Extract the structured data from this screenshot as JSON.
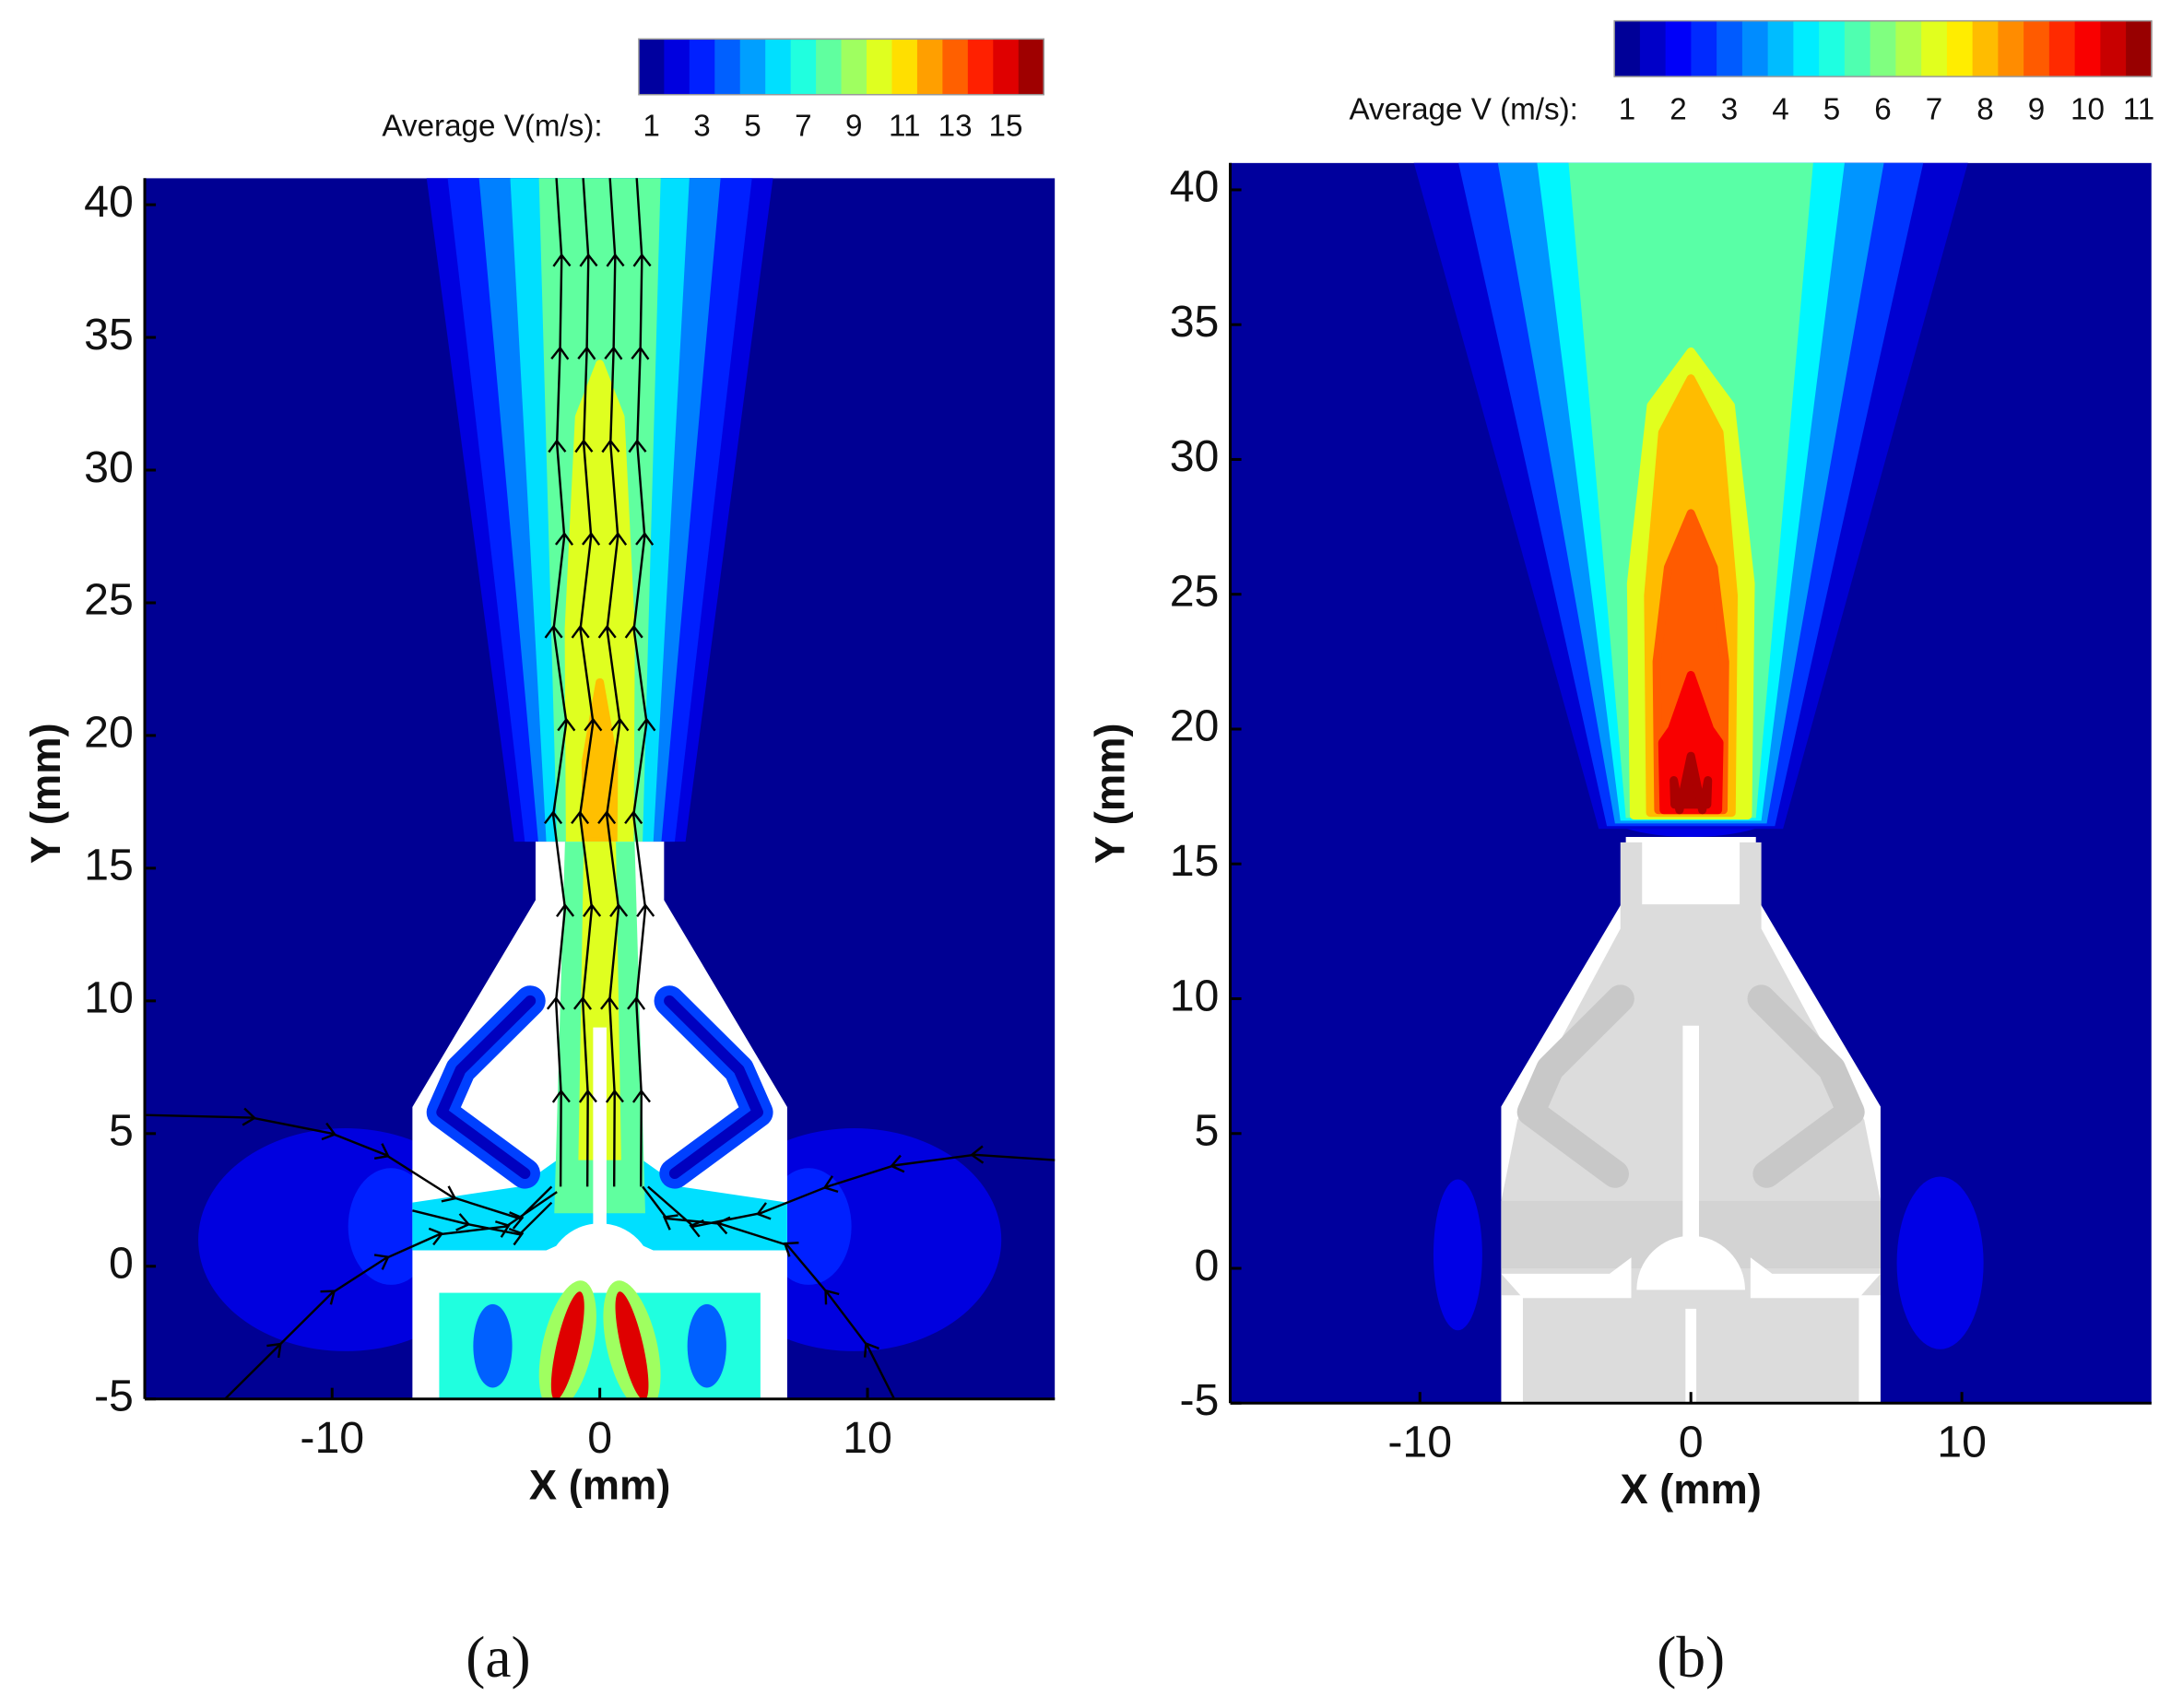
{
  "chart_data": [
    {
      "type": "contour",
      "label": "(a)",
      "xlabel": "X (mm)",
      "ylabel": "Y (mm)",
      "xlim": [
        -17,
        17
      ],
      "ylim": [
        -5,
        41
      ],
      "xticks": [
        -10,
        0,
        10
      ],
      "yticks": [
        -5,
        0,
        5,
        10,
        15,
        20,
        25,
        30,
        35,
        40
      ],
      "colorbar": {
        "label": "Average V(m/s):",
        "lim": [
          0.5,
          16.5
        ],
        "ticks": [
          1,
          3,
          5,
          7,
          9,
          11,
          13,
          15
        ]
      },
      "streamlines": true
    },
    {
      "type": "contour",
      "label": "(b)",
      "xlabel": "X (mm)",
      "ylabel": "Y (mm)",
      "xlim": [
        -17,
        17
      ],
      "ylim": [
        -5,
        41
      ],
      "xticks": [
        -10,
        0,
        10
      ],
      "yticks": [
        -5,
        0,
        5,
        10,
        15,
        20,
        25,
        30,
        35,
        40
      ],
      "colorbar": {
        "label": "Average V (m/s):",
        "lim": [
          0.75,
          11.25
        ],
        "ticks": [
          1,
          2,
          3,
          4,
          5,
          6,
          7,
          8,
          9,
          10,
          11
        ]
      },
      "streamlines": false
    }
  ]
}
